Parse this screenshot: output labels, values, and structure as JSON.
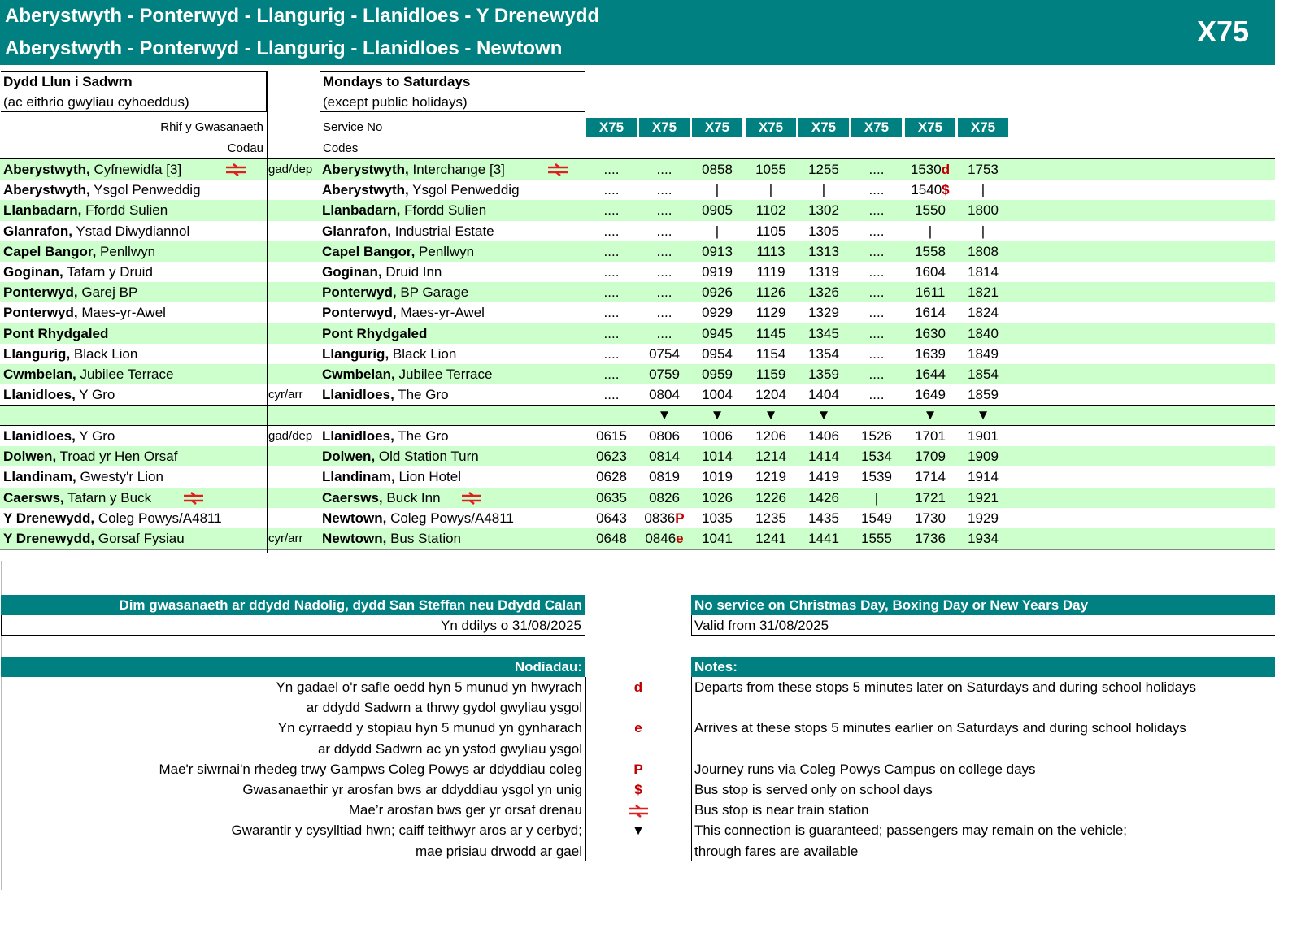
{
  "header": {
    "title_cy": "Aberystwyth - Ponterwyd - Llangurig - Llanidloes - Y Drenewydd",
    "title_en": "Aberystwyth - Ponterwyd - Llangurig - Llanidloes - Newtown",
    "route": "X75"
  },
  "days": {
    "cy_1": "Dydd Llun i Sadwrn",
    "cy_2": "(ac eithrio gwyliau cyhoeddus)",
    "en_1": "Mondays to Saturdays",
    "en_2": "(except public holidays)"
  },
  "labels": {
    "service_cy": "Rhif y Gwasanaeth",
    "codes_cy": "Codau",
    "service_en": "Service No",
    "codes_en": "Codes",
    "dep": "gad/dep",
    "arr": "cyr/arr"
  },
  "services": [
    "X75",
    "X75",
    "X75",
    "X75",
    "X75",
    "X75",
    "X75",
    "X75"
  ],
  "colors": {
    "teal": "#008080",
    "stripe": "#ccffcc",
    "note_red": "#c00000"
  },
  "stops_upper": [
    {
      "cy_b": "Aberystwyth,",
      "cy": " Cyfnewidfa [3]",
      "en_b": "Aberystwyth,",
      "en": " Interchange [3]",
      "train": true,
      "mark": "dep",
      "times": [
        "....",
        "....",
        "0858",
        "1055",
        "1255",
        "....",
        [
          "1530",
          "d"
        ],
        "1753"
      ]
    },
    {
      "cy_b": "Aberystwyth,",
      "cy": " Ysgol Penweddig",
      "en_b": "Aberystwyth,",
      "en": " Ysgol Penweddig",
      "times": [
        "....",
        "....",
        "|",
        "|",
        "|",
        "....",
        [
          "1540",
          "$"
        ],
        "|"
      ]
    },
    {
      "cy_b": "Llanbadarn,",
      "cy": " Ffordd Sulien",
      "en_b": "Llanbadarn,",
      "en": " Ffordd Sulien",
      "times": [
        "....",
        "....",
        "0905",
        "1102",
        "1302",
        "....",
        "1550",
        "1800"
      ]
    },
    {
      "cy_b": "Glanrafon,",
      "cy": " Ystad Diwydiannol",
      "en_b": "Glanrafon,",
      "en": " Industrial Estate",
      "times": [
        "....",
        "....",
        "|",
        "1105",
        "1305",
        "....",
        "|",
        "|"
      ]
    },
    {
      "cy_b": "Capel Bangor,",
      "cy": " Penllwyn",
      "en_b": "Capel Bangor,",
      "en": " Penllwyn",
      "times": [
        "....",
        "....",
        "0913",
        "1113",
        "1313",
        "....",
        "1558",
        "1808"
      ]
    },
    {
      "cy_b": "Goginan,",
      "cy": " Tafarn y Druid",
      "en_b": "Goginan,",
      "en": " Druid Inn",
      "times": [
        "....",
        "....",
        "0919",
        "1119",
        "1319",
        "....",
        "1604",
        "1814"
      ]
    },
    {
      "cy_b": "Ponterwyd,",
      "cy": " Garej BP",
      "en_b": "Ponterwyd,",
      "en": " BP Garage",
      "times": [
        "....",
        "....",
        "0926",
        "1126",
        "1326",
        "....",
        "1611",
        "1821"
      ]
    },
    {
      "cy_b": "Ponterwyd,",
      "cy": " Maes-yr-Awel",
      "en_b": "Ponterwyd,",
      "en": " Maes-yr-Awel",
      "times": [
        "....",
        "....",
        "0929",
        "1129",
        "1329",
        "....",
        "1614",
        "1824"
      ]
    },
    {
      "cy_b": "Pont Rhydgaled",
      "cy": "",
      "en_b": "Pont Rhydgaled",
      "en": "",
      "times": [
        "....",
        "....",
        "0945",
        "1145",
        "1345",
        "....",
        "1630",
        "1840"
      ]
    },
    {
      "cy_b": "Llangurig,",
      "cy": " Black Lion",
      "en_b": "Llangurig,",
      "en": " Black Lion",
      "times": [
        "....",
        "0754",
        "0954",
        "1154",
        "1354",
        "....",
        "1639",
        "1849"
      ]
    },
    {
      "cy_b": "Cwmbelan,",
      "cy": " Jubilee Terrace",
      "en_b": "Cwmbelan,",
      "en": " Jubilee Terrace",
      "times": [
        "....",
        "0759",
        "0959",
        "1159",
        "1359",
        "....",
        "1644",
        "1854"
      ]
    },
    {
      "cy_b": "Llanidloes,",
      "cy": " Y Gro",
      "en_b": "Llanidloes,",
      "en": " The Gro",
      "mark": "arr",
      "times": [
        "....",
        "0804",
        "1004",
        "1204",
        "1404",
        "....",
        "1649",
        "1859"
      ]
    }
  ],
  "connections": [
    "",
    "▼",
    "▼",
    "▼",
    "▼",
    "",
    "▼",
    "▼"
  ],
  "stops_lower": [
    {
      "cy_b": "Llanidloes,",
      "cy": " Y Gro",
      "en_b": "Llanidloes,",
      "en": " The Gro",
      "mark": "dep",
      "times": [
        "0615",
        "0806",
        "1006",
        "1206",
        "1406",
        "1526",
        "1701",
        "1901"
      ]
    },
    {
      "cy_b": "Dolwen,",
      "cy": " Troad yr Hen Orsaf",
      "en_b": "Dolwen,",
      "en": " Old Station Turn",
      "times": [
        "0623",
        "0814",
        "1014",
        "1214",
        "1414",
        "1534",
        "1709",
        "1909"
      ]
    },
    {
      "cy_b": "Llandinam,",
      "cy": " Gwesty'r Lion",
      "en_b": "Llandinam,",
      "en": " Lion Hotel",
      "times": [
        "0628",
        "0819",
        "1019",
        "1219",
        "1419",
        "1539",
        "1714",
        "1914"
      ]
    },
    {
      "cy_b": "Caersws,",
      "cy": " Tafarn y Buck",
      "en_b": "Caersws,",
      "en": " Buck Inn",
      "train": true,
      "times": [
        "0635",
        "0826",
        "1026",
        "1226",
        "1426",
        "|",
        "1721",
        "1921"
      ]
    },
    {
      "cy_b": "Y Drenewydd,",
      "cy": " Coleg Powys/A4811",
      "en_b": "Newtown,",
      "en": " Coleg Powys/A4811",
      "times": [
        "0643",
        [
          "0836",
          "P"
        ],
        "1035",
        "1235",
        "1435",
        "1549",
        "1730",
        "1929"
      ]
    },
    {
      "cy_b": "Y Drenewydd,",
      "cy": " Gorsaf Fysiau",
      "en_b": "Newtown,",
      "en": " Bus Station",
      "mark": "arr",
      "times": [
        "0648",
        [
          "0846",
          "e"
        ],
        "1041",
        "1241",
        "1441",
        "1555",
        "1736",
        "1934"
      ]
    }
  ],
  "footer": {
    "no_service_cy": "Dim gwasanaeth ar ddydd Nadolig, dydd San Steffan neu Ddydd Calan",
    "valid_cy": "Yn ddilys o 31/08/2025",
    "no_service_en": "No service on Christmas Day, Boxing Day or New Years Day",
    "valid_en": "Valid from 31/08/2025",
    "notes_cy": "Nodiadau:",
    "notes_en": "Notes:"
  },
  "notes": [
    {
      "cy": "Yn gadael o'r safle oedd hyn 5 munud yn hwyrach",
      "sym": "d",
      "en": "Departs from these stops 5 minutes later on Saturdays and during school holidays"
    },
    {
      "cy": "ar ddydd Sadwrn a thrwy gydol gwyliau ysgol",
      "sym": "",
      "en": ""
    },
    {
      "cy": "Yn cyrraedd y stopiau hyn 5 munud yn gynharach",
      "sym": "e",
      "en": "Arrives at  these stops 5 minutes earlier on Saturdays and during school holidays"
    },
    {
      "cy": "ar ddydd Sadwrn ac yn ystod gwyliau ysgol",
      "sym": "",
      "en": ""
    },
    {
      "cy": "Mae'r siwrnai'n rhedeg trwy Gampws Coleg Powys ar ddyddiau coleg",
      "sym": "P",
      "en": "Journey runs via Coleg Powys Campus on college days"
    },
    {
      "cy": "Gwasanaethir yr arosfan bws ar ddyddiau ysgol yn unig",
      "sym": "$",
      "en": "Bus stop is served only on school days"
    },
    {
      "cy": "Mae’r arosfan bws ger yr orsaf drenau",
      "sym": "train",
      "en": "Bus stop is near train station"
    },
    {
      "cy": "Gwarantir y cysylltiad hwn; caiff teithwyr aros ar y cerbyd;",
      "sym": "▼",
      "en": "This connection is guaranteed; passengers may remain on the vehicle;"
    },
    {
      "cy": "mae prisiau drwodd ar gael",
      "sym": "",
      "en": "through fares are available"
    }
  ]
}
